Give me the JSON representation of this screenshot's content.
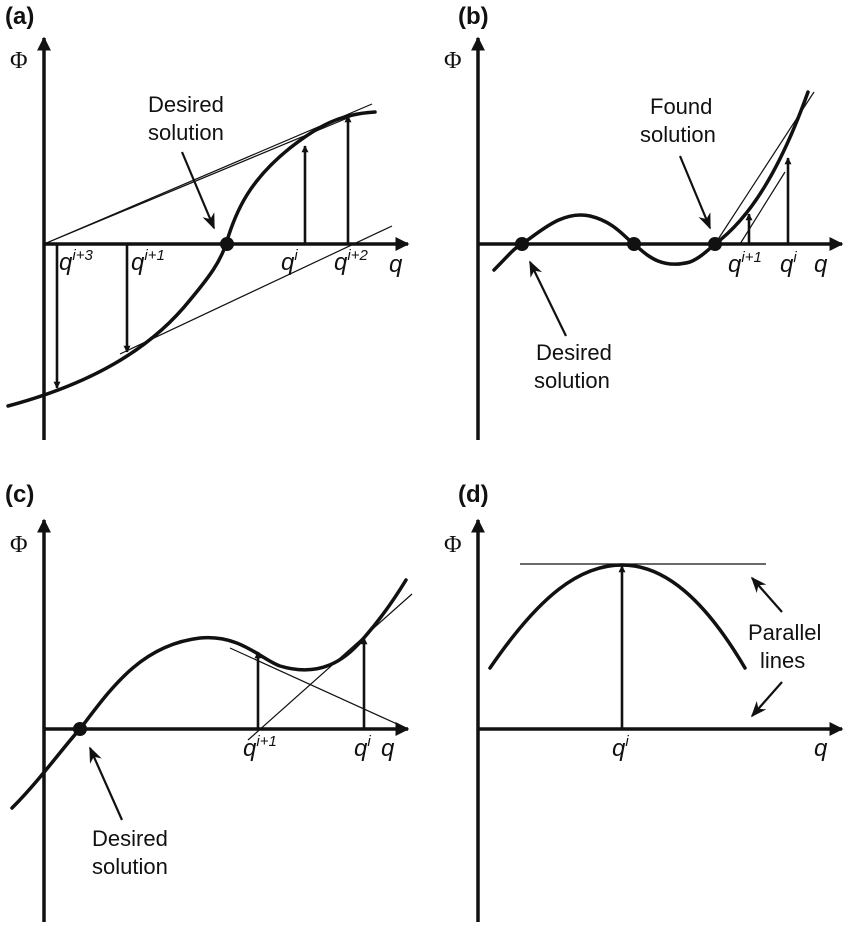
{
  "figure": {
    "panels": [
      {
        "id": "a",
        "label": "(a)",
        "y_axis": "Φ",
        "x_axis": "q",
        "q_labels": [
          {
            "base": "q",
            "sup": "i+3"
          },
          {
            "base": "q",
            "sup": "i+1"
          },
          {
            "base": "q",
            "sup": "i"
          },
          {
            "base": "q",
            "sup": "i+2"
          }
        ],
        "annotation": [
          "Desired",
          "solution"
        ]
      },
      {
        "id": "b",
        "label": "(b)",
        "y_axis": "Φ",
        "x_axis": "q",
        "q_labels": [
          {
            "base": "q",
            "sup": "i+1"
          },
          {
            "base": "q",
            "sup": "i"
          }
        ],
        "annotation_top": [
          "Found",
          "solution"
        ],
        "annotation_bottom": [
          "Desired",
          "solution"
        ]
      },
      {
        "id": "c",
        "label": "(c)",
        "y_axis": "Φ",
        "x_axis": "q",
        "q_labels": [
          {
            "base": "q",
            "sup": "i+1"
          },
          {
            "base": "q",
            "sup": "i"
          }
        ],
        "annotation": [
          "Desired",
          "solution"
        ]
      },
      {
        "id": "d",
        "label": "(d)",
        "y_axis": "Φ",
        "x_axis": "q",
        "q_labels": [
          {
            "base": "q",
            "sup": "i"
          }
        ],
        "annotation": [
          "Parallel",
          "lines"
        ]
      }
    ]
  }
}
